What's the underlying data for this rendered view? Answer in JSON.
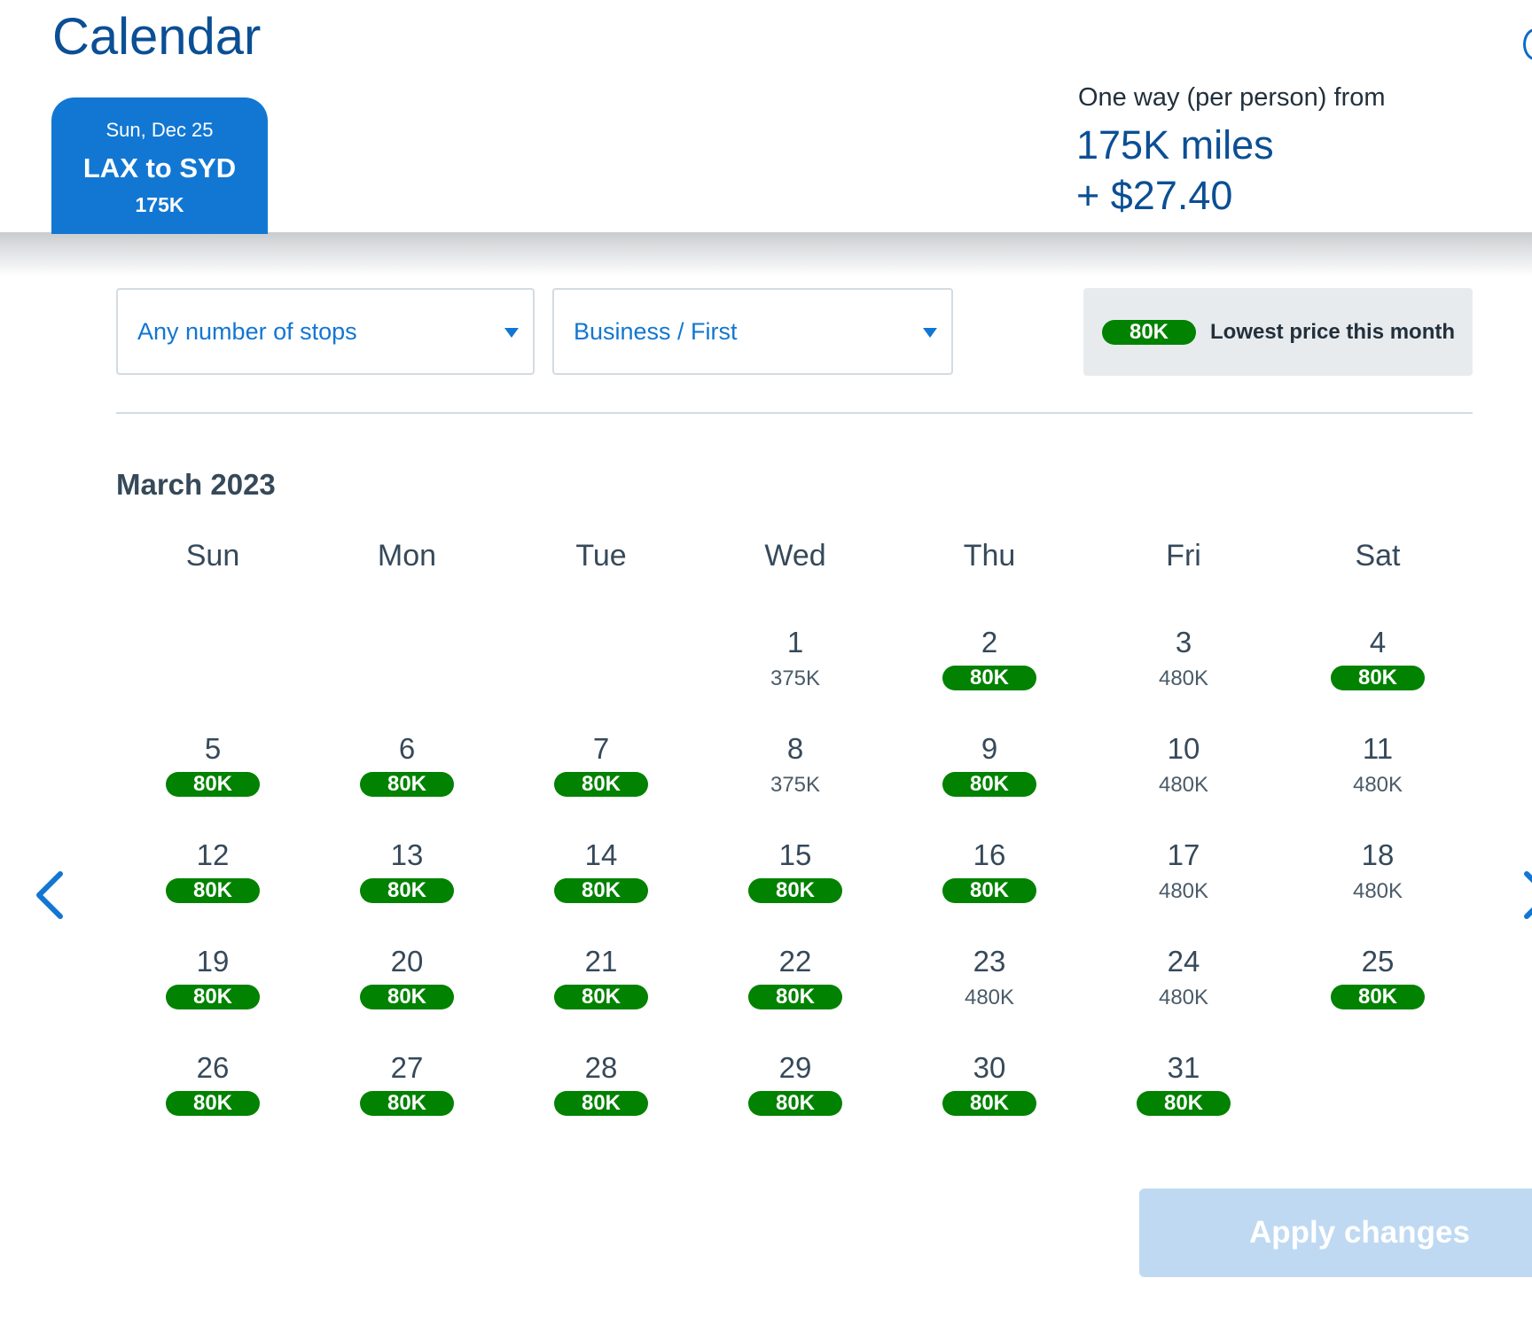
{
  "header": {
    "title": "Calendar"
  },
  "flight_tab": {
    "date": "Sun, Dec 25",
    "route": "LAX to SYD",
    "price": "175K"
  },
  "fare": {
    "label": "One way (per person) from",
    "miles": "175K miles",
    "taxes": "+ $27.40"
  },
  "filters": {
    "stops": {
      "value": "Any number of stops"
    },
    "cabin": {
      "value": "Business / First"
    }
  },
  "legend": {
    "badge": "80K",
    "label": "Lowest price this month"
  },
  "calendar": {
    "month": "March 2023",
    "weekdays": [
      "Sun",
      "Mon",
      "Tue",
      "Wed",
      "Thu",
      "Fri",
      "Sat"
    ],
    "first_weekday_index": 3,
    "days": [
      {
        "day": "1",
        "price": "375K",
        "lowest": false
      },
      {
        "day": "2",
        "price": "80K",
        "lowest": true
      },
      {
        "day": "3",
        "price": "480K",
        "lowest": false
      },
      {
        "day": "4",
        "price": "80K",
        "lowest": true
      },
      {
        "day": "5",
        "price": "80K",
        "lowest": true
      },
      {
        "day": "6",
        "price": "80K",
        "lowest": true
      },
      {
        "day": "7",
        "price": "80K",
        "lowest": true
      },
      {
        "day": "8",
        "price": "375K",
        "lowest": false
      },
      {
        "day": "9",
        "price": "80K",
        "lowest": true
      },
      {
        "day": "10",
        "price": "480K",
        "lowest": false
      },
      {
        "day": "11",
        "price": "480K",
        "lowest": false
      },
      {
        "day": "12",
        "price": "80K",
        "lowest": true
      },
      {
        "day": "13",
        "price": "80K",
        "lowest": true
      },
      {
        "day": "14",
        "price": "80K",
        "lowest": true
      },
      {
        "day": "15",
        "price": "80K",
        "lowest": true
      },
      {
        "day": "16",
        "price": "80K",
        "lowest": true
      },
      {
        "day": "17",
        "price": "480K",
        "lowest": false
      },
      {
        "day": "18",
        "price": "480K",
        "lowest": false
      },
      {
        "day": "19",
        "price": "80K",
        "lowest": true
      },
      {
        "day": "20",
        "price": "80K",
        "lowest": true
      },
      {
        "day": "21",
        "price": "80K",
        "lowest": true
      },
      {
        "day": "22",
        "price": "80K",
        "lowest": true
      },
      {
        "day": "23",
        "price": "480K",
        "lowest": false
      },
      {
        "day": "24",
        "price": "480K",
        "lowest": false
      },
      {
        "day": "25",
        "price": "80K",
        "lowest": true
      },
      {
        "day": "26",
        "price": "80K",
        "lowest": true
      },
      {
        "day": "27",
        "price": "80K",
        "lowest": true
      },
      {
        "day": "28",
        "price": "80K",
        "lowest": true
      },
      {
        "day": "29",
        "price": "80K",
        "lowest": true
      },
      {
        "day": "30",
        "price": "80K",
        "lowest": true
      },
      {
        "day": "31",
        "price": "80K",
        "lowest": true
      }
    ]
  },
  "nav": {
    "prev_icon": "chevron-left-icon",
    "next_icon": "chevron-right-icon"
  },
  "actions": {
    "apply_label": "Apply changes"
  },
  "colors": {
    "brand_blue": "#1277d3",
    "title_blue": "#0b4f94",
    "lowest_green": "#018200",
    "apply_disabled": "#bfd9f2"
  }
}
